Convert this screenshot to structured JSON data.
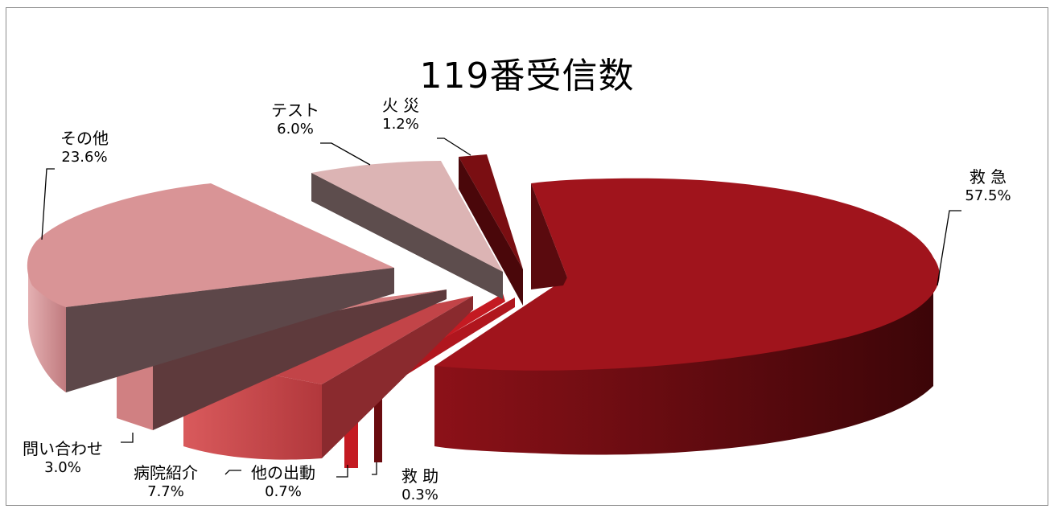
{
  "chart_data": {
    "type": "pie",
    "style": "3d-exploded",
    "title": "119番受信数",
    "slices": [
      {
        "label": "救 急",
        "pct_label": "57.5%",
        "value": 57.5,
        "color": "#a0141c"
      },
      {
        "label": "救 助",
        "pct_label": "0.3%",
        "value": 0.3,
        "color": "#b0161e"
      },
      {
        "label": "他の出動",
        "pct_label": "0.7%",
        "value": 0.7,
        "color": "#c41a22"
      },
      {
        "label": "病院紹介",
        "pct_label": "7.7%",
        "value": 7.7,
        "color": "#cc4a4c"
      },
      {
        "label": "問い合わせ",
        "pct_label": "3.0%",
        "value": 3.0,
        "color": "#d47c7e"
      },
      {
        "label": "その他",
        "pct_label": "23.6%",
        "value": 23.6,
        "color": "#d99496"
      },
      {
        "label": "テスト",
        "pct_label": "6.0%",
        "value": 6.0,
        "color": "#dcb4b4"
      },
      {
        "label": "火 災",
        "pct_label": "1.2%",
        "value": 1.2,
        "color": "#7a0e12"
      }
    ]
  }
}
